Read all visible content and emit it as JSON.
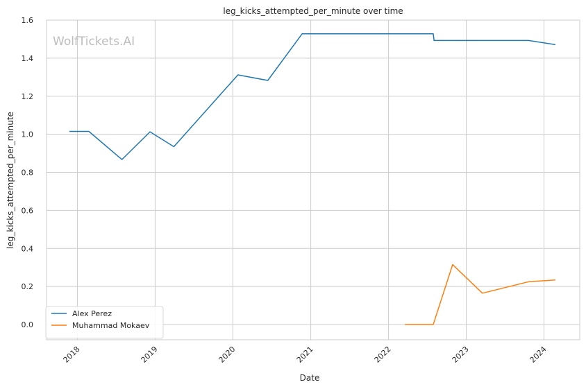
{
  "chart_data": {
    "type": "line",
    "title": "leg_kicks_attempted_per_minute over time",
    "xlabel": "Date",
    "ylabel": "leg_kicks_attempted_per_minute",
    "watermark": "WolfTickets.AI",
    "x_ticks": [
      "2018",
      "2019",
      "2020",
      "2021",
      "2022",
      "2023",
      "2024"
    ],
    "y_ticks": [
      "0.0",
      "0.2",
      "0.4",
      "0.6",
      "0.8",
      "1.0",
      "1.2",
      "1.4",
      "1.6"
    ],
    "xlim": [
      "2017-08-09",
      "2024-06-17"
    ],
    "ylim": [
      -0.08,
      1.6
    ],
    "grid": true,
    "legend_position": "lower-left",
    "series": [
      {
        "name": "Alex Perez",
        "color": "#1f77b4",
        "points": [
          {
            "x": "2017-11-25",
            "y": 1.015
          },
          {
            "x": "2018-02-24",
            "y": 1.015
          },
          {
            "x": "2018-07-29",
            "y": 0.867
          },
          {
            "x": "2018-12-08",
            "y": 1.013
          },
          {
            "x": "2019-03-30",
            "y": 0.935
          },
          {
            "x": "2020-01-25",
            "y": 1.312
          },
          {
            "x": "2020-06-13",
            "y": 1.283
          },
          {
            "x": "2020-11-21",
            "y": 1.528
          },
          {
            "x": "2022-07-30",
            "y": 1.528
          },
          {
            "x": "2022-08-03",
            "y": 1.493
          },
          {
            "x": "2023-10-21",
            "y": 1.493
          },
          {
            "x": "2024-02-24",
            "y": 1.471
          }
        ]
      },
      {
        "name": "Muhammad Mokaev",
        "color": "#ff7f0e",
        "points": [
          {
            "x": "2022-03-19",
            "y": 0.0
          },
          {
            "x": "2022-07-30",
            "y": 0.0
          },
          {
            "x": "2022-10-29",
            "y": 0.315
          },
          {
            "x": "2023-03-18",
            "y": 0.165
          },
          {
            "x": "2023-10-21",
            "y": 0.225
          },
          {
            "x": "2024-02-24",
            "y": 0.234
          }
        ]
      }
    ]
  }
}
